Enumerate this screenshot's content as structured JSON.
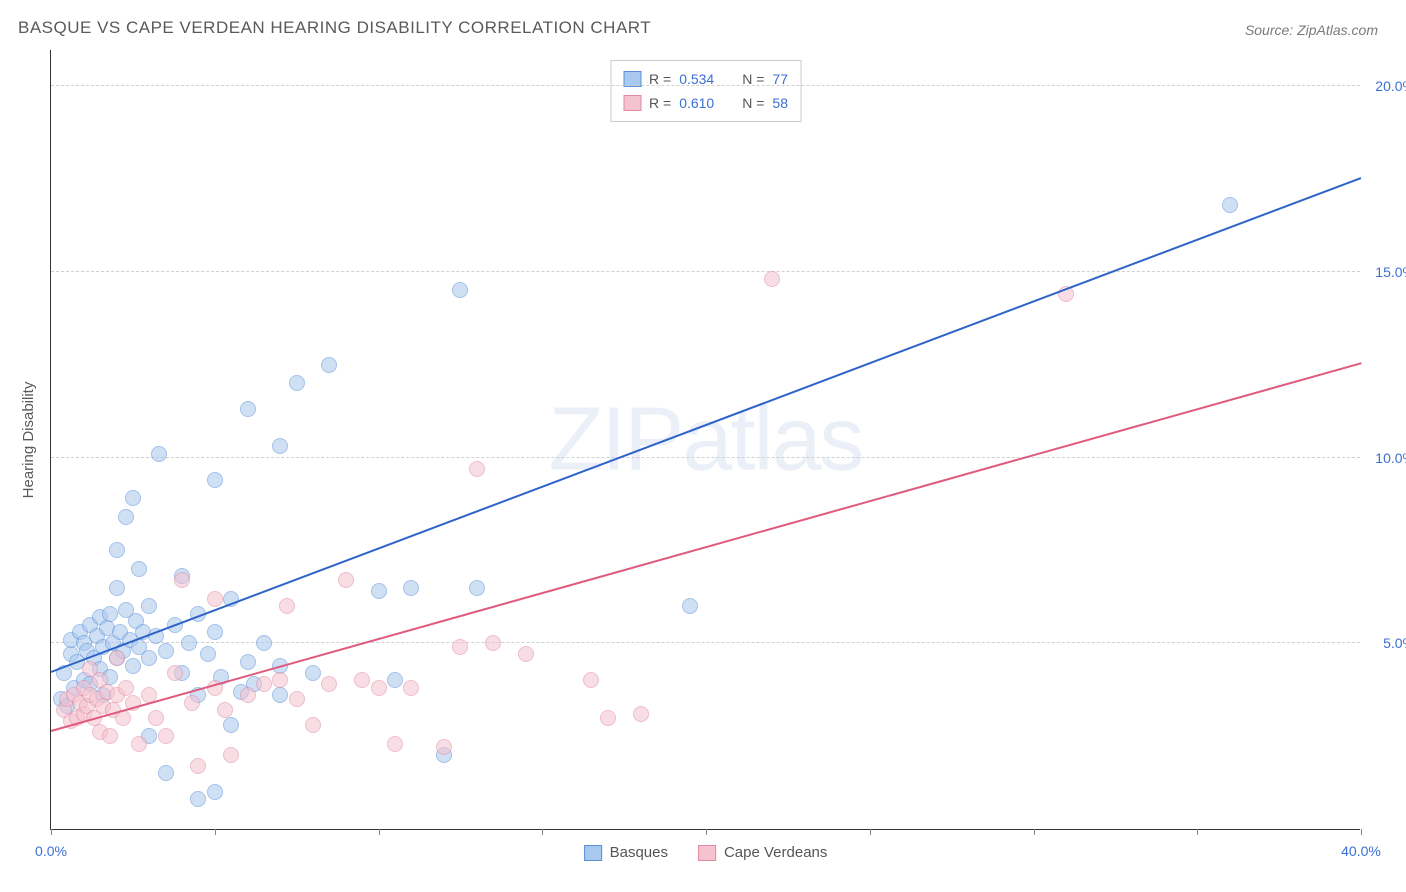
{
  "title": "BASQUE VS CAPE VERDEAN HEARING DISABILITY CORRELATION CHART",
  "source": "Source: ZipAtlas.com",
  "yaxis_title": "Hearing Disability",
  "watermark": {
    "part1": "ZIP",
    "part2": "atlas"
  },
  "chart": {
    "type": "scatter",
    "xlim": [
      0,
      40
    ],
    "ylim": [
      0,
      21
    ],
    "xticks": [
      0,
      5,
      10,
      15,
      20,
      25,
      30,
      35,
      40
    ],
    "xtick_labels": [
      "0.0%",
      "",
      "",
      "",
      "",
      "",
      "",
      "",
      "40.0%"
    ],
    "yticks": [
      5,
      10,
      15,
      20
    ],
    "ytick_labels": [
      "5.0%",
      "10.0%",
      "15.0%",
      "20.0%"
    ],
    "grid_color": "#d0d0d0",
    "background_color": "#ffffff",
    "marker_radius": 8,
    "marker_opacity": 0.55,
    "series": [
      {
        "name": "Basques",
        "color_fill": "#a8c8ee",
        "color_stroke": "#5a8fd8",
        "R": "0.534",
        "N": "77",
        "trend": {
          "x1": 0,
          "y1": 4.2,
          "x2": 40,
          "y2": 17.5,
          "color": "#2e63c9",
          "width": 2
        },
        "points": [
          [
            0.3,
            3.5
          ],
          [
            0.4,
            4.2
          ],
          [
            0.5,
            3.3
          ],
          [
            0.6,
            4.7
          ],
          [
            0.6,
            5.1
          ],
          [
            0.7,
            3.8
          ],
          [
            0.8,
            4.5
          ],
          [
            0.9,
            5.3
          ],
          [
            1.0,
            4.0
          ],
          [
            1.0,
            5.0
          ],
          [
            1.1,
            4.8
          ],
          [
            1.2,
            5.5
          ],
          [
            1.2,
            3.9
          ],
          [
            1.3,
            4.6
          ],
          [
            1.4,
            5.2
          ],
          [
            1.5,
            4.3
          ],
          [
            1.5,
            5.7
          ],
          [
            1.6,
            4.9
          ],
          [
            1.7,
            5.4
          ],
          [
            1.8,
            4.1
          ],
          [
            1.8,
            5.8
          ],
          [
            1.9,
            5.0
          ],
          [
            2.0,
            4.6
          ],
          [
            2.0,
            6.5
          ],
          [
            2.0,
            7.5
          ],
          [
            2.1,
            5.3
          ],
          [
            2.2,
            4.8
          ],
          [
            2.3,
            5.9
          ],
          [
            2.3,
            8.4
          ],
          [
            2.4,
            5.1
          ],
          [
            2.5,
            4.4
          ],
          [
            2.5,
            8.9
          ],
          [
            2.6,
            5.6
          ],
          [
            2.7,
            4.9
          ],
          [
            2.8,
            5.3
          ],
          [
            3.0,
            4.6
          ],
          [
            3.0,
            6.0
          ],
          [
            3.0,
            2.5
          ],
          [
            3.2,
            5.2
          ],
          [
            3.3,
            10.1
          ],
          [
            3.5,
            4.8
          ],
          [
            3.5,
            1.5
          ],
          [
            3.8,
            5.5
          ],
          [
            4.0,
            4.2
          ],
          [
            4.0,
            6.8
          ],
          [
            4.2,
            5.0
          ],
          [
            4.5,
            3.6
          ],
          [
            4.5,
            5.8
          ],
          [
            4.5,
            0.8
          ],
          [
            4.8,
            4.7
          ],
          [
            5.0,
            1.0
          ],
          [
            5.0,
            5.3
          ],
          [
            5.0,
            9.4
          ],
          [
            5.2,
            4.1
          ],
          [
            5.5,
            2.8
          ],
          [
            5.5,
            6.2
          ],
          [
            5.8,
            3.7
          ],
          [
            6.0,
            4.5
          ],
          [
            6.0,
            11.3
          ],
          [
            6.2,
            3.9
          ],
          [
            6.5,
            5.0
          ],
          [
            7.0,
            3.6
          ],
          [
            7.0,
            4.4
          ],
          [
            7.0,
            10.3
          ],
          [
            7.5,
            12.0
          ],
          [
            8.0,
            4.2
          ],
          [
            8.5,
            12.5
          ],
          [
            10.0,
            6.4
          ],
          [
            10.5,
            4.0
          ],
          [
            11.0,
            6.5
          ],
          [
            12.0,
            2.0
          ],
          [
            12.5,
            14.5
          ],
          [
            13.0,
            6.5
          ],
          [
            19.5,
            6.0
          ],
          [
            36.0,
            16.8
          ],
          [
            2.7,
            7.0
          ],
          [
            1.6,
            3.6
          ]
        ]
      },
      {
        "name": "Cape Verdeans",
        "color_fill": "#f5c2d0",
        "color_stroke": "#e08aa0",
        "R": "0.610",
        "N": "58",
        "trend": {
          "x1": 0,
          "y1": 2.6,
          "x2": 40,
          "y2": 12.5,
          "color": "#e05a7d",
          "width": 2
        },
        "points": [
          [
            0.4,
            3.2
          ],
          [
            0.5,
            3.5
          ],
          [
            0.6,
            2.9
          ],
          [
            0.7,
            3.6
          ],
          [
            0.8,
            3.0
          ],
          [
            0.9,
            3.4
          ],
          [
            1.0,
            3.1
          ],
          [
            1.0,
            3.8
          ],
          [
            1.1,
            3.3
          ],
          [
            1.2,
            3.6
          ],
          [
            1.2,
            4.3
          ],
          [
            1.3,
            3.0
          ],
          [
            1.4,
            3.5
          ],
          [
            1.5,
            2.6
          ],
          [
            1.5,
            4.0
          ],
          [
            1.6,
            3.3
          ],
          [
            1.7,
            3.7
          ],
          [
            1.8,
            2.5
          ],
          [
            1.9,
            3.2
          ],
          [
            2.0,
            3.6
          ],
          [
            2.0,
            4.6
          ],
          [
            2.2,
            3.0
          ],
          [
            2.3,
            3.8
          ],
          [
            2.5,
            3.4
          ],
          [
            2.7,
            2.3
          ],
          [
            3.0,
            3.6
          ],
          [
            3.2,
            3.0
          ],
          [
            3.5,
            2.5
          ],
          [
            3.8,
            4.2
          ],
          [
            4.0,
            6.7
          ],
          [
            4.3,
            3.4
          ],
          [
            4.5,
            1.7
          ],
          [
            5.0,
            3.8
          ],
          [
            5.0,
            6.2
          ],
          [
            5.3,
            3.2
          ],
          [
            5.5,
            2.0
          ],
          [
            6.0,
            3.6
          ],
          [
            6.5,
            3.9
          ],
          [
            7.0,
            4.0
          ],
          [
            7.2,
            6.0
          ],
          [
            7.5,
            3.5
          ],
          [
            8.0,
            2.8
          ],
          [
            8.5,
            3.9
          ],
          [
            9.0,
            6.7
          ],
          [
            9.5,
            4.0
          ],
          [
            10.0,
            3.8
          ],
          [
            10.5,
            2.3
          ],
          [
            11.0,
            3.8
          ],
          [
            12.0,
            2.2
          ],
          [
            12.5,
            4.9
          ],
          [
            13.0,
            9.7
          ],
          [
            13.5,
            5.0
          ],
          [
            14.5,
            4.7
          ],
          [
            16.5,
            4.0
          ],
          [
            17.0,
            3.0
          ],
          [
            18.0,
            3.1
          ],
          [
            22.0,
            14.8
          ],
          [
            31.0,
            14.4
          ]
        ]
      }
    ]
  },
  "legend_top": {
    "rows": [
      {
        "swatch_fill": "#a8c8ee",
        "swatch_stroke": "#5a8fd8",
        "r_label": "R =",
        "r_val": "0.534",
        "n_label": "N =",
        "n_val": "77"
      },
      {
        "swatch_fill": "#f5c2d0",
        "swatch_stroke": "#e08aa0",
        "r_label": "R =",
        "r_val": "0.610",
        "n_label": "N =",
        "n_val": "58"
      }
    ]
  },
  "legend_bottom": {
    "items": [
      {
        "swatch_fill": "#a8c8ee",
        "swatch_stroke": "#5a8fd8",
        "label": "Basques"
      },
      {
        "swatch_fill": "#f5c2d0",
        "swatch_stroke": "#e08aa0",
        "label": "Cape Verdeans"
      }
    ]
  }
}
